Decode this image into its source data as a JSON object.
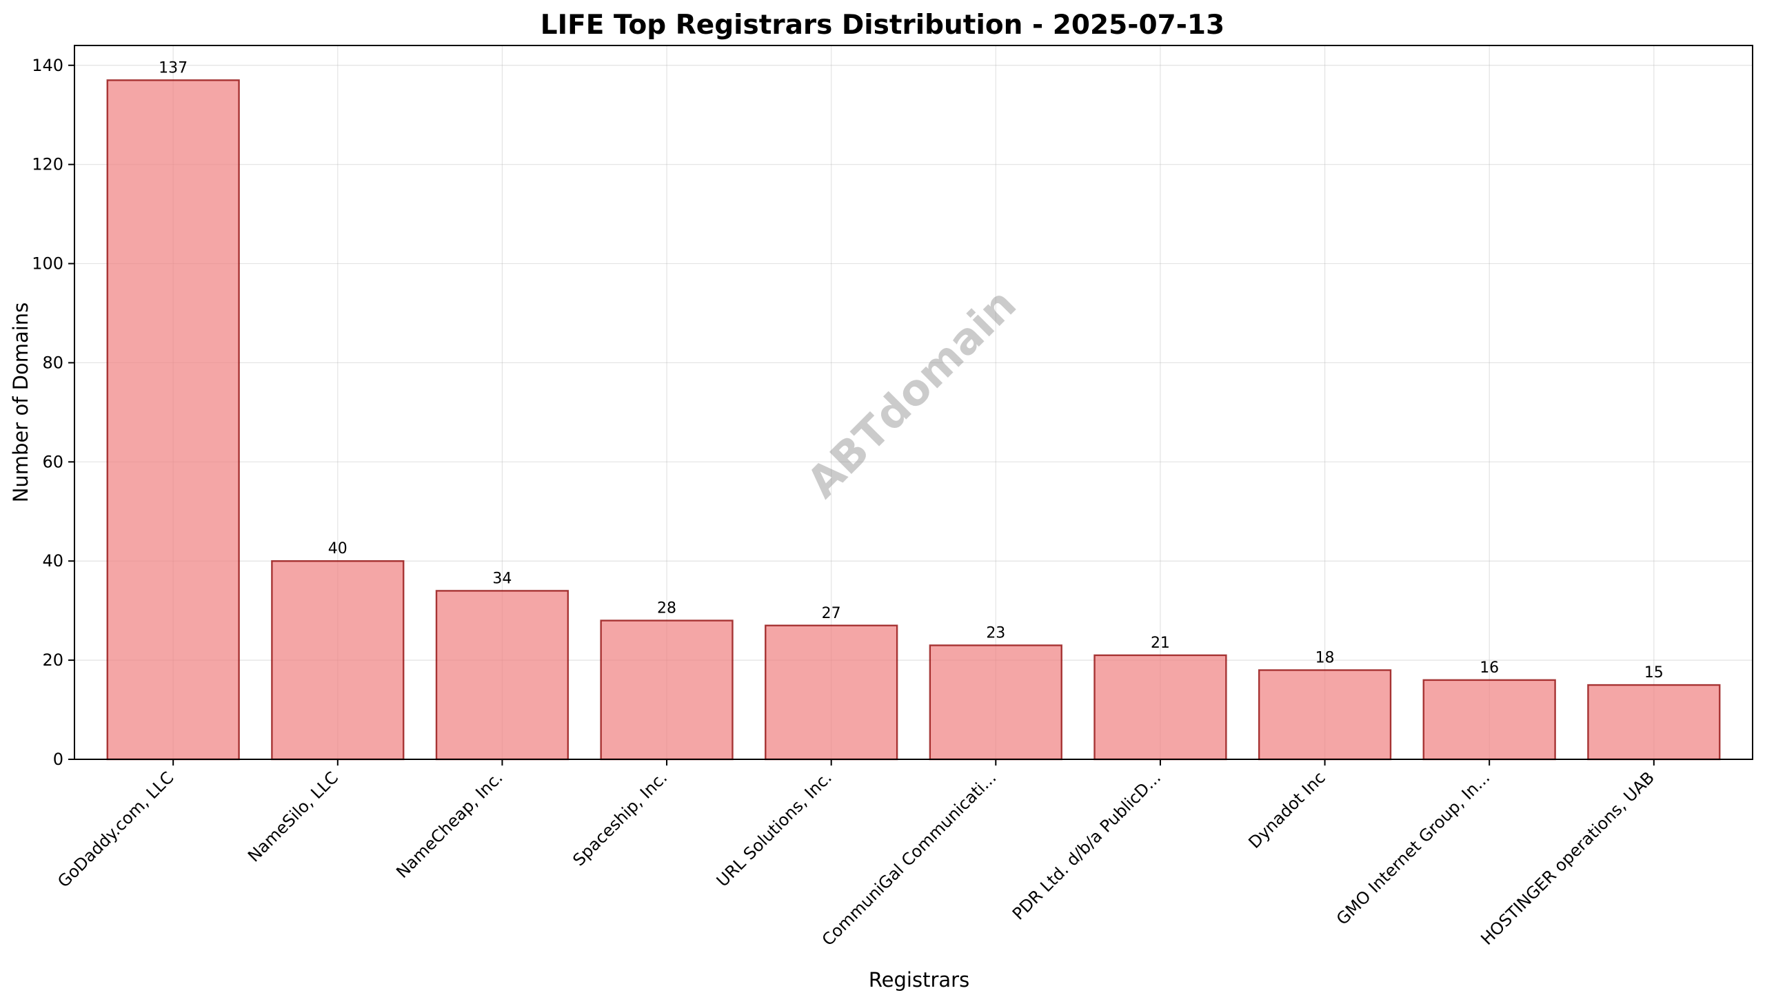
{
  "chart_data": {
    "type": "bar",
    "title": "LIFE Top Registrars Distribution - 2025-07-13",
    "xlabel": "Registrars",
    "ylabel": "Number of Domains",
    "categories": [
      "GoDaddy.com, LLC",
      "NameSilo, LLC",
      "NameCheap, Inc.",
      "Spaceship, Inc.",
      "URL Solutions, Inc.",
      "CommuniGal Communicati...",
      "PDR Ltd. d/b/a PublicD...",
      "Dynadot Inc",
      "GMO Internet Group, In...",
      "HOSTINGER operations, UAB"
    ],
    "values": [
      137,
      40,
      34,
      28,
      27,
      23,
      21,
      18,
      16,
      15
    ],
    "ylim": [
      0,
      144
    ],
    "yticks": [
      0,
      20,
      40,
      60,
      80,
      100,
      120,
      140
    ],
    "grid": true,
    "watermark": "ABTdomain",
    "colors": {
      "bar_fill": "#f08080",
      "bar_edge": "#8b0000"
    }
  }
}
